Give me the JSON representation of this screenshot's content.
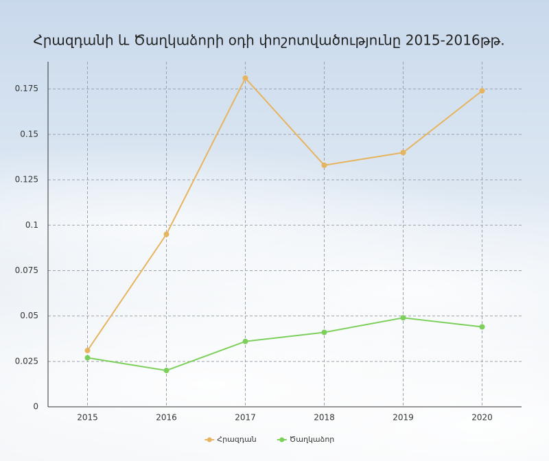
{
  "chart_data": {
    "type": "line",
    "title": "Հրազդանի և Ծաղկաձորի օդի փոշոտվածությունը 2015-2016թթ.",
    "categories": [
      "2015",
      "2016",
      "2017",
      "2018",
      "2019",
      "2020"
    ],
    "series": [
      {
        "name": "Հրազդան",
        "color": "#e6b45e",
        "values": [
          0.031,
          0.095,
          0.181,
          0.133,
          0.14,
          0.174
        ]
      },
      {
        "name": "Ծաղկաձոր",
        "color": "#7ccf5a",
        "values": [
          0.027,
          0.02,
          0.036,
          0.041,
          0.049,
          0.044
        ]
      }
    ],
    "ylim": [
      0,
      0.19
    ],
    "yticks": [
      0,
      0.025,
      0.05,
      0.075,
      0.1,
      0.125,
      0.15,
      0.175
    ],
    "grid": true,
    "legend": "bottom"
  }
}
